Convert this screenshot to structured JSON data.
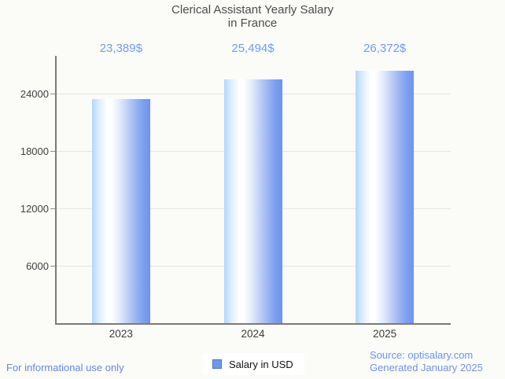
{
  "title": {
    "line1": "Clerical Assistant Yearly Salary",
    "line2": "in France"
  },
  "chart_data": {
    "type": "bar",
    "categories": [
      "2023",
      "2024",
      "2025"
    ],
    "values": [
      23389,
      25494,
      26372
    ],
    "value_labels": [
      "23,389$",
      "25,494$",
      "26,372$"
    ],
    "series": [
      {
        "name": "Salary in USD",
        "values": [
          23389,
          25494,
          26372
        ]
      }
    ],
    "title": "Clerical Assistant Yearly Salary in France",
    "xlabel": "",
    "ylabel": "",
    "y_ticks": [
      6000,
      12000,
      18000,
      24000
    ],
    "ylim": [
      0,
      27945
    ],
    "grid": true,
    "legend_position": "bottom"
  },
  "legend": {
    "label": "Salary in USD"
  },
  "footer": {
    "disclaimer": "For informational use only",
    "source": "Source: optisalary.com",
    "generated": "Generated January 2025"
  },
  "colors": {
    "background": "#fbfbf8",
    "title_text": "#4c4c4c",
    "value_label_text": "#6d9eef",
    "bar_edge_light": "#b0d7fc",
    "bar_highlight": "#ffffff",
    "bar_edge_dark": "#6f93e8",
    "gridline": "#e4e4e4",
    "axis": "#7a7a7a",
    "legend_swatch": "#6c9be6",
    "legend_swatch_border": "#4a7ac4",
    "footer_link": "#6d94e8"
  }
}
